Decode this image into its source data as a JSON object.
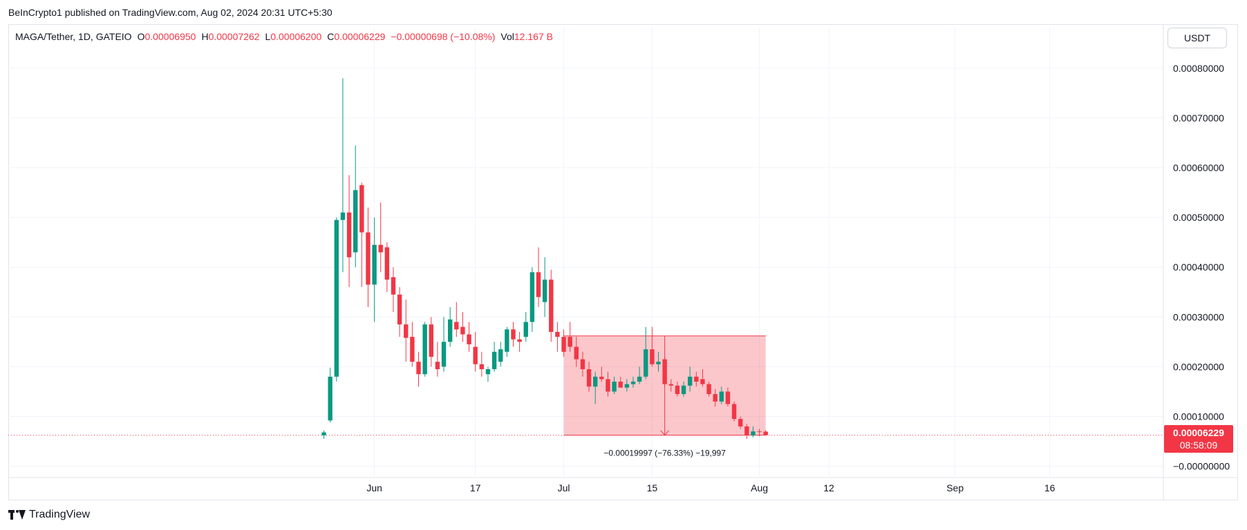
{
  "header": {
    "published": "BeInCrypto1 published on TradingView.com, Aug 02, 2024 20:31 UTC+5:30"
  },
  "legend": {
    "symbol": "MAGA/Tether, 1D, GATEIO",
    "o_label": "O",
    "o_value": "0.00006950",
    "h_label": "H",
    "h_value": "0.00007262",
    "l_label": "L",
    "l_value": "0.00006200",
    "c_label": "C",
    "c_value": "0.00006229",
    "change": "−0.00000698 (−10.08%)",
    "vol_label": "Vol",
    "vol_value": "12.167 B"
  },
  "currency_button": "USDT",
  "price_tag": {
    "price": "0.00006229",
    "countdown": "08:58:09",
    "color": "#f23645"
  },
  "footer": {
    "brand": "TradingView"
  },
  "colors": {
    "up": "#089981",
    "down": "#f23645",
    "range_fill": "#f23645",
    "grid": "#f0f3fa"
  },
  "chart_data": {
    "type": "candlestick",
    "y_ticks": [
      "0.00080000",
      "0.00070000",
      "0.00060000",
      "0.00050000",
      "0.00040000",
      "0.00030000",
      "0.00020000",
      "0.00010000",
      "−0.00000000"
    ],
    "y_tick_values": [
      0.0008,
      0.0007,
      0.0006,
      0.0005,
      0.0004,
      0.0003,
      0.0002,
      0.0001,
      0.0
    ],
    "ylim": [
      -2e-05,
      0.00084
    ],
    "x_ticks": [
      {
        "label": "Jun",
        "day": 0
      },
      {
        "label": "17",
        "day": 16
      },
      {
        "label": "Jul",
        "day": 30
      },
      {
        "label": "15",
        "day": 44
      },
      {
        "label": "Aug",
        "day": 61
      },
      {
        "label": "12",
        "day": 72
      },
      {
        "label": "Sep",
        "day": 92
      },
      {
        "label": "16",
        "day": 107
      }
    ],
    "x_range_days": [
      -58,
      125
    ],
    "candles": [
      {
        "d": -8,
        "o": 6.2e-05,
        "h": 7.2e-05,
        "l": 5.5e-05,
        "c": 6.8e-05
      },
      {
        "d": -7,
        "o": 9.2e-05,
        "h": 0.000198,
        "l": 8.8e-05,
        "c": 0.00018
      },
      {
        "d": -6,
        "o": 0.00018,
        "h": 0.0005,
        "l": 0.00017,
        "c": 0.000495
      },
      {
        "d": -5,
        "o": 0.000495,
        "h": 0.00078,
        "l": 0.00039,
        "c": 0.00051
      },
      {
        "d": -4,
        "o": 0.00051,
        "h": 0.000585,
        "l": 0.00036,
        "c": 0.00042
      },
      {
        "d": -3,
        "o": 0.00043,
        "h": 0.000645,
        "l": 0.0004,
        "c": 0.000555
      },
      {
        "d": -2,
        "o": 0.000565,
        "h": 0.00057,
        "l": 0.00036,
        "c": 0.00047
      },
      {
        "d": -1,
        "o": 0.00047,
        "h": 0.00052,
        "l": 0.00032,
        "c": 0.000365
      },
      {
        "d": 0,
        "o": 0.000365,
        "h": 0.0005,
        "l": 0.00029,
        "c": 0.000445
      },
      {
        "d": 1,
        "o": 0.000445,
        "h": 0.00053,
        "l": 0.00039,
        "c": 0.00043
      },
      {
        "d": 2,
        "o": 0.00044,
        "h": 0.00045,
        "l": 0.00035,
        "c": 0.000375
      },
      {
        "d": 3,
        "o": 0.00038,
        "h": 0.0004,
        "l": 0.00031,
        "c": 0.000345
      },
      {
        "d": 4,
        "o": 0.000345,
        "h": 0.00036,
        "l": 0.00026,
        "c": 0.000285
      },
      {
        "d": 5,
        "o": 0.000285,
        "h": 0.000335,
        "l": 0.00021,
        "c": 0.000258
      },
      {
        "d": 6,
        "o": 0.00026,
        "h": 0.00029,
        "l": 0.0002,
        "c": 0.00021
      },
      {
        "d": 7,
        "o": 0.00021,
        "h": 0.00023,
        "l": 0.00016,
        "c": 0.000185
      },
      {
        "d": 8,
        "o": 0.000185,
        "h": 0.00029,
        "l": 0.00018,
        "c": 0.000285
      },
      {
        "d": 9,
        "o": 0.000285,
        "h": 0.0003,
        "l": 0.0002,
        "c": 0.00022
      },
      {
        "d": 10,
        "o": 0.00021,
        "h": 0.00025,
        "l": 0.00018,
        "c": 0.000195
      },
      {
        "d": 11,
        "o": 0.0002,
        "h": 0.0003,
        "l": 0.00019,
        "c": 0.00025
      },
      {
        "d": 12,
        "o": 0.00025,
        "h": 0.00032,
        "l": 0.00024,
        "c": 0.000295
      },
      {
        "d": 13,
        "o": 0.00029,
        "h": 0.00033,
        "l": 0.00026,
        "c": 0.000275
      },
      {
        "d": 14,
        "o": 0.00028,
        "h": 0.00031,
        "l": 0.00025,
        "c": 0.000265
      },
      {
        "d": 15,
        "o": 0.000265,
        "h": 0.00029,
        "l": 0.00023,
        "c": 0.000245
      },
      {
        "d": 16,
        "o": 0.00024,
        "h": 0.00027,
        "l": 0.00019,
        "c": 0.000205
      },
      {
        "d": 17,
        "o": 0.000205,
        "h": 0.00023,
        "l": 0.00018,
        "c": 0.000195
      },
      {
        "d": 18,
        "o": 0.000185,
        "h": 0.0002,
        "l": 0.00017,
        "c": 0.000195
      },
      {
        "d": 19,
        "o": 0.000195,
        "h": 0.00025,
        "l": 0.00019,
        "c": 0.00023
      },
      {
        "d": 20,
        "o": 0.00021,
        "h": 0.00025,
        "l": 0.0002,
        "c": 0.000235
      },
      {
        "d": 21,
        "o": 0.00023,
        "h": 0.00028,
        "l": 0.00022,
        "c": 0.000275
      },
      {
        "d": 22,
        "o": 0.000275,
        "h": 0.00029,
        "l": 0.00024,
        "c": 0.000255
      },
      {
        "d": 23,
        "o": 0.000255,
        "h": 0.00027,
        "l": 0.00023,
        "c": 0.00025
      },
      {
        "d": 24,
        "o": 0.00026,
        "h": 0.00031,
        "l": 0.00025,
        "c": 0.00029
      },
      {
        "d": 25,
        "o": 0.00029,
        "h": 0.0004,
        "l": 0.00027,
        "c": 0.00039
      },
      {
        "d": 26,
        "o": 0.00039,
        "h": 0.00044,
        "l": 0.00032,
        "c": 0.00034
      },
      {
        "d": 27,
        "o": 0.00033,
        "h": 0.00042,
        "l": 0.0003,
        "c": 0.000375
      },
      {
        "d": 28,
        "o": 0.000375,
        "h": 0.000395,
        "l": 0.00025,
        "c": 0.00027
      },
      {
        "d": 29,
        "o": 0.00027,
        "h": 0.00029,
        "l": 0.00023,
        "c": 0.00026
      },
      {
        "d": 30,
        "o": 0.00026,
        "h": 0.000275,
        "l": 0.00022,
        "c": 0.00023
      },
      {
        "d": 31,
        "o": 0.00026,
        "h": 0.00029,
        "l": 0.00023,
        "c": 0.00024
      },
      {
        "d": 32,
        "o": 0.00024,
        "h": 0.00026,
        "l": 0.0002,
        "c": 0.000215
      },
      {
        "d": 33,
        "o": 0.000215,
        "h": 0.00023,
        "l": 0.00018,
        "c": 0.000195
      },
      {
        "d": 34,
        "o": 0.000195,
        "h": 0.00021,
        "l": 0.00015,
        "c": 0.00016
      },
      {
        "d": 35,
        "o": 0.00016,
        "h": 0.00019,
        "l": 0.000125,
        "c": 0.00018
      },
      {
        "d": 36,
        "o": 0.00018,
        "h": 0.0002,
        "l": 0.00017,
        "c": 0.000175
      },
      {
        "d": 37,
        "o": 0.000175,
        "h": 0.00019,
        "l": 0.00014,
        "c": 0.00015
      },
      {
        "d": 38,
        "o": 0.00015,
        "h": 0.00018,
        "l": 0.000145,
        "c": 0.00017
      },
      {
        "d": 39,
        "o": 0.00017,
        "h": 0.00018,
        "l": 0.00016,
        "c": 0.000158
      },
      {
        "d": 40,
        "o": 0.000158,
        "h": 0.000175,
        "l": 0.00015,
        "c": 0.000165
      },
      {
        "d": 41,
        "o": 0.000165,
        "h": 0.00018,
        "l": 0.000158,
        "c": 0.00017
      },
      {
        "d": 42,
        "o": 0.00017,
        "h": 0.0002,
        "l": 0.000165,
        "c": 0.00018
      },
      {
        "d": 43,
        "o": 0.00018,
        "h": 0.00028,
        "l": 0.000175,
        "c": 0.000235
      },
      {
        "d": 44,
        "o": 0.000235,
        "h": 0.00028,
        "l": 0.0002,
        "c": 0.000205
      },
      {
        "d": 45,
        "o": 0.000205,
        "h": 0.00023,
        "l": 0.00019,
        "c": 0.00021
      },
      {
        "d": 46,
        "o": 0.000215,
        "h": 0.00022,
        "l": 0.00016,
        "c": 0.000165
      },
      {
        "d": 47,
        "o": 0.000165,
        "h": 0.000175,
        "l": 0.00015,
        "c": 0.000162
      },
      {
        "d": 48,
        "o": 0.000162,
        "h": 0.00017,
        "l": 0.00014,
        "c": 0.000145
      },
      {
        "d": 49,
        "o": 0.000145,
        "h": 0.00017,
        "l": 0.00014,
        "c": 0.000162
      },
      {
        "d": 50,
        "o": 0.000162,
        "h": 0.0002,
        "l": 0.00015,
        "c": 0.00018
      },
      {
        "d": 51,
        "o": 0.00018,
        "h": 0.00019,
        "l": 0.00016,
        "c": 0.00017
      },
      {
        "d": 52,
        "o": 0.000175,
        "h": 0.000195,
        "l": 0.00016,
        "c": 0.000165
      },
      {
        "d": 53,
        "o": 0.000165,
        "h": 0.00017,
        "l": 0.00014,
        "c": 0.000145
      },
      {
        "d": 54,
        "o": 0.000145,
        "h": 0.000155,
        "l": 0.00012,
        "c": 0.00013
      },
      {
        "d": 55,
        "o": 0.00013,
        "h": 0.00016,
        "l": 0.000125,
        "c": 0.00015
      },
      {
        "d": 56,
        "o": 0.00015,
        "h": 0.000158,
        "l": 0.00012,
        "c": 0.000125
      },
      {
        "d": 57,
        "o": 0.000125,
        "h": 0.00013,
        "l": 9e-05,
        "c": 9.5e-05
      },
      {
        "d": 58,
        "o": 9.5e-05,
        "h": 0.0001,
        "l": 7.5e-05,
        "c": 8e-05
      },
      {
        "d": 59,
        "o": 8e-05,
        "h": 8.5e-05,
        "l": 5.5e-05,
        "c": 6.2e-05
      },
      {
        "d": 60,
        "o": 6.2e-05,
        "h": 8e-05,
        "l": 5.8e-05,
        "c": 7e-05
      },
      {
        "d": 61,
        "o": 7e-05,
        "h": 7.5e-05,
        "l": 6e-05,
        "c": 6.9e-05
      },
      {
        "d": 62,
        "o": 6.95e-05,
        "h": 7.26e-05,
        "l": 6.2e-05,
        "c": 6.23e-05
      }
    ],
    "range_box": {
      "day_start": 30,
      "day_end": 62,
      "price_top": 0.000262,
      "price_bottom": 6.23e-05,
      "arrow_day": 46
    },
    "measure_label": "−0.00019997 (−76.33%) −19,997",
    "last_price": 6.229e-05,
    "grid": true
  }
}
